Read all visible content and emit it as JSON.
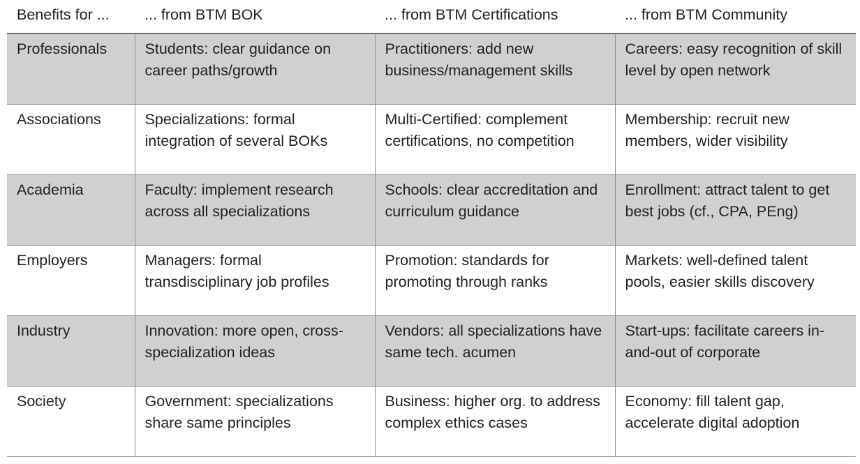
{
  "table": {
    "headers": [
      "Benefits for ...",
      "... from BTM BOK",
      "... from BTM Certifications",
      "... from BTM Community"
    ],
    "rows": [
      {
        "label": "Professionals",
        "cells": [
          "Students: clear guidance on career paths/growth",
          "Practitioners: add new business/management skills",
          "Careers: easy recognition of skill level by open network"
        ]
      },
      {
        "label": "Associations",
        "cells": [
          "Specializations: formal integration of several BOKs",
          "Multi-Certified: complement certifications, no competition",
          "Membership: recruit new members, wider visibility"
        ]
      },
      {
        "label": "Academia",
        "cells": [
          "Faculty: implement research across all specializations",
          "Schools: clear accreditation and curriculum guidance",
          "Enrollment: attract talent to get best jobs (cf., CPA, PEng)"
        ]
      },
      {
        "label": "Employers",
        "cells": [
          "Managers: formal transdisciplinary job profiles",
          "Promotion: standards for promoting through ranks",
          "Markets: well-defined talent pools, easier skills discovery"
        ]
      },
      {
        "label": "Industry",
        "cells": [
          "Innovation: more open, cross-specialization ideas",
          "Vendors: all specializations have same tech. acumen",
          "Start-ups: facilitate careers in-and-out of corporate"
        ]
      },
      {
        "label": "Society",
        "cells": [
          "Government: specializations share same principles",
          "Business: higher org. to address complex ethics cases",
          "Economy: fill talent gap, accelerate digital adoption"
        ]
      }
    ],
    "colors": {
      "shaded_row": "#d0d0d0",
      "plain_row": "#ffffff",
      "rule": "#8c8c8c",
      "text": "#222222"
    }
  }
}
